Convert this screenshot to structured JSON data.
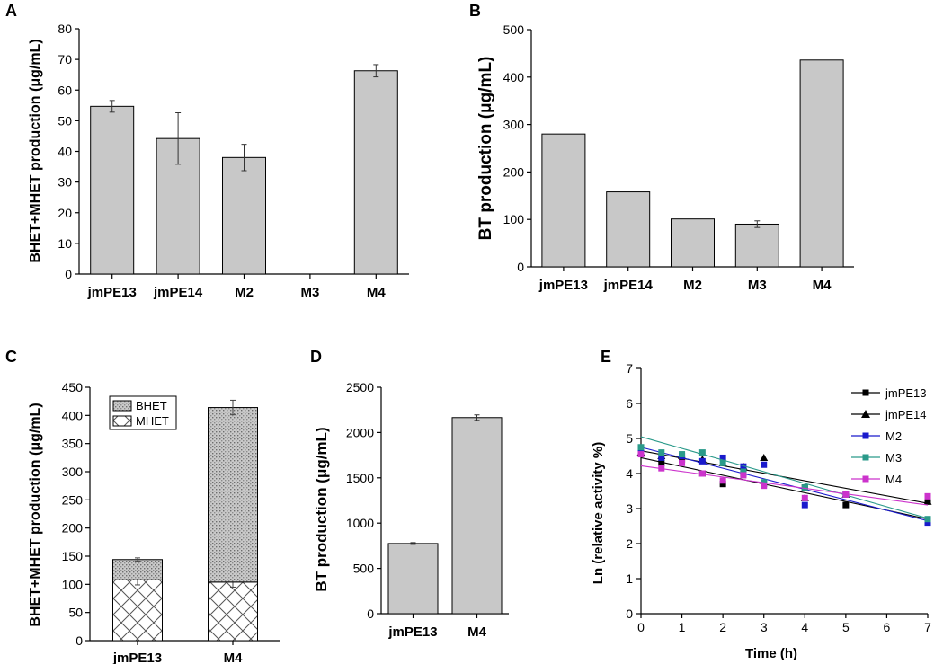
{
  "chart_data": [
    {
      "panel": "A",
      "type": "bar",
      "ylabel": "BHET+MHET production (μg/mL)",
      "ylim": [
        0,
        80
      ],
      "yticks": [
        0,
        10,
        20,
        30,
        40,
        50,
        60,
        70,
        80
      ],
      "categories": [
        "jmPE13",
        "jmPE14",
        "M2",
        "M3",
        "M4"
      ],
      "values": [
        54.7,
        44.2,
        38.0,
        0,
        66.3
      ],
      "errors": [
        1.9,
        8.4,
        4.3,
        0,
        2.0
      ],
      "color": "#c8c8c8"
    },
    {
      "panel": "B",
      "type": "bar",
      "ylabel": "BT production (μg/mL)",
      "ylim": [
        0,
        500
      ],
      "yticks": [
        0,
        100,
        200,
        300,
        400,
        500
      ],
      "categories": [
        "jmPE13",
        "jmPE14",
        "M2",
        "M3",
        "M4"
      ],
      "values": [
        280,
        158,
        101,
        90,
        436
      ],
      "errors": [
        0,
        0,
        0,
        7,
        0
      ],
      "color": "#c8c8c8"
    },
    {
      "panel": "C",
      "type": "stacked-bar",
      "ylabel": "BHET+MHET production (μg/mL)",
      "ylim": [
        0,
        450
      ],
      "yticks": [
        0,
        50,
        100,
        150,
        200,
        250,
        300,
        350,
        400,
        450
      ],
      "categories": [
        "jmPE13",
        "M4"
      ],
      "series": [
        {
          "name": "MHET",
          "values": [
            108,
            104
          ],
          "errors": [
            9,
            9
          ],
          "pattern": "crosshatch"
        },
        {
          "name": "BHET",
          "values": [
            36,
            310
          ],
          "errors": [
            3,
            13
          ],
          "pattern": "dotted"
        }
      ],
      "legend": "top-left"
    },
    {
      "panel": "D",
      "type": "bar",
      "ylabel": "BT production (μg/mL)",
      "ylim": [
        0,
        2500
      ],
      "yticks": [
        0,
        500,
        1000,
        1500,
        2000,
        2500
      ],
      "categories": [
        "jmPE13",
        "M4"
      ],
      "values": [
        775,
        2165
      ],
      "errors": [
        10,
        30
      ],
      "color": "#c8c8c8"
    },
    {
      "panel": "E",
      "type": "scatter",
      "xlabel": "Time (h)",
      "ylabel": "Ln (relative activity %)",
      "xlim": [
        0,
        7
      ],
      "ylim": [
        0,
        7
      ],
      "xticks": [
        0,
        1,
        2,
        3,
        4,
        5,
        6,
        7
      ],
      "yticks": [
        0,
        1,
        2,
        3,
        4,
        5,
        6,
        7
      ],
      "legend": "top-right",
      "series": [
        {
          "name": "jmPE13",
          "marker": "square",
          "color": "#000000",
          "x": [
            0,
            0.5,
            1,
            1.5,
            2,
            2.5,
            3,
            4,
            5,
            7
          ],
          "y": [
            4.6,
            4.3,
            4.4,
            4.0,
            3.7,
            4.0,
            3.7,
            3.6,
            3.1,
            3.2
          ],
          "fit": [
            4.45,
            2.7
          ]
        },
        {
          "name": "jmPE14",
          "marker": "triangle",
          "color": "#000000",
          "x": [
            0,
            0.5,
            1,
            1.5,
            2,
            2.5,
            3,
            4,
            5,
            7
          ],
          "y": [
            4.6,
            4.5,
            4.5,
            4.4,
            4.3,
            4.2,
            4.45,
            3.3,
            3.4,
            3.2
          ],
          "fit": [
            4.65,
            3.15
          ]
        },
        {
          "name": "M2",
          "marker": "square",
          "color": "#1a1acc",
          "x": [
            0,
            0.5,
            1,
            1.5,
            2,
            2.5,
            3,
            4,
            5,
            7
          ],
          "y": [
            4.65,
            4.45,
            4.5,
            4.35,
            4.45,
            4.2,
            4.25,
            3.1,
            3.4,
            2.6
          ],
          "fit": [
            4.75,
            2.65
          ]
        },
        {
          "name": "M3",
          "marker": "square",
          "color": "#2a9a8a",
          "x": [
            0,
            0.5,
            1,
            1.5,
            2,
            2.5,
            3,
            4,
            5,
            7
          ],
          "y": [
            4.75,
            4.6,
            4.55,
            4.6,
            4.3,
            4.05,
            3.75,
            3.6,
            3.4,
            2.7
          ],
          "fit": [
            5.05,
            2.72
          ]
        },
        {
          "name": "M4",
          "marker": "square",
          "color": "#cc33cc",
          "x": [
            0,
            0.5,
            1,
            1.5,
            2,
            2.5,
            3,
            4,
            5,
            7
          ],
          "y": [
            4.55,
            4.15,
            4.3,
            4.0,
            3.8,
            3.95,
            3.65,
            3.3,
            3.4,
            3.35
          ],
          "fit": [
            4.22,
            3.1
          ]
        }
      ]
    }
  ]
}
